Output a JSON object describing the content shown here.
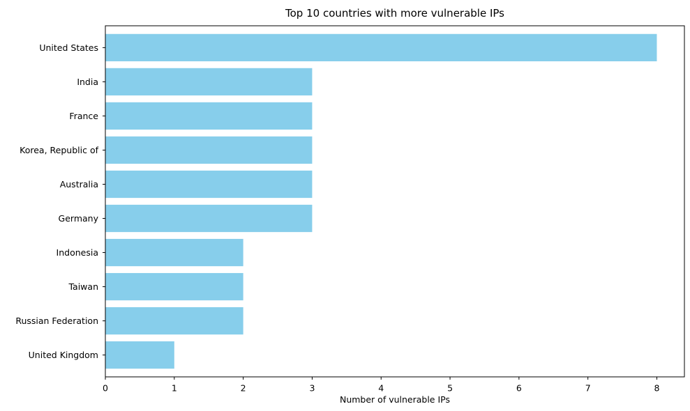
{
  "chart_data": {
    "type": "bar",
    "orientation": "horizontal",
    "title": "Top 10 countries with more vulnerable IPs",
    "xlabel": "Number of vulnerable IPs",
    "ylabel": "",
    "categories": [
      "United States",
      "India",
      "France",
      "Korea, Republic of",
      "Australia",
      "Germany",
      "Indonesia",
      "Taiwan",
      "Russian Federation",
      "United Kingdom"
    ],
    "values": [
      8,
      3,
      3,
      3,
      3,
      3,
      2,
      2,
      2,
      1
    ],
    "xlim": [
      0,
      8.4
    ],
    "xticks": [
      "0",
      "1",
      "2",
      "3",
      "4",
      "5",
      "6",
      "7",
      "8"
    ],
    "grid": false,
    "bar_color": "#87ceeb"
  }
}
